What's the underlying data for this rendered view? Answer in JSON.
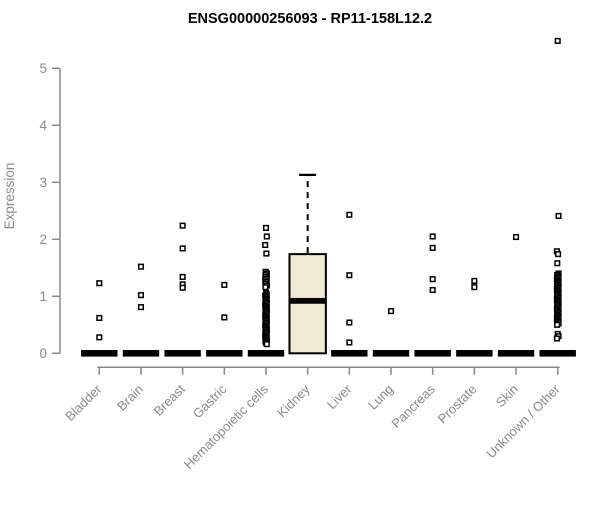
{
  "window": {
    "background": "#ffffff"
  },
  "colors": {
    "title": "#000000",
    "axis": "#888888",
    "tick_label": "#8a8a8a",
    "point_stroke": "#000000",
    "point_fill": "#ffffff",
    "box_fill": "#f0ead2",
    "box_stroke": "#000000",
    "median": "#000000"
  },
  "chart_data": {
    "type": "boxplot",
    "title": "ENSG00000256093 - RP11-158L12.2",
    "xlabel": "",
    "ylabel": "Expression",
    "ylim": [
      0,
      5.6
    ],
    "yticks": [
      0,
      1,
      2,
      3,
      4,
      5
    ],
    "grid": false,
    "legend": "none",
    "categories": [
      "Bladder",
      "Brain",
      "Breast",
      "Gastric",
      "Hematopoietic cells",
      "Kidney",
      "Liver",
      "Lung",
      "Pancreas",
      "Prostate",
      "Skin",
      "Unknown / Other"
    ],
    "boxes": [
      {
        "category": "Bladder",
        "q1": 0,
        "median": 0,
        "q3": 0,
        "whisker_low": 0,
        "whisker_high": 0,
        "outliers": [
          1.23,
          0.62,
          0.28
        ]
      },
      {
        "category": "Brain",
        "q1": 0,
        "median": 0,
        "q3": 0,
        "whisker_low": 0,
        "whisker_high": 0,
        "outliers": [
          1.52,
          1.02,
          0.81
        ]
      },
      {
        "category": "Breast",
        "q1": 0,
        "median": 0,
        "q3": 0,
        "whisker_low": 0,
        "whisker_high": 0,
        "outliers": [
          2.24,
          1.84,
          1.34,
          1.21,
          1.15
        ]
      },
      {
        "category": "Gastric",
        "q1": 0,
        "median": 0,
        "q3": 0,
        "whisker_low": 0,
        "whisker_high": 0,
        "outliers": [
          1.2,
          0.63
        ]
      },
      {
        "category": "Hematopoietic cells",
        "q1": 0,
        "median": 0,
        "q3": 0,
        "whisker_low": 0,
        "whisker_high": 0,
        "outliers": [
          2.2,
          2.05,
          1.9,
          1.75,
          1.43,
          1.4,
          1.37,
          1.34,
          1.31,
          1.28,
          1.25,
          1.22,
          1.19,
          1.16,
          1.06,
          1.035,
          1.01,
          0.985,
          0.96,
          0.935,
          0.91,
          0.885,
          0.86,
          0.835,
          0.81,
          0.785,
          0.76,
          0.735,
          0.71,
          0.685,
          0.66,
          0.635,
          0.61,
          0.585,
          0.56,
          0.535,
          0.51,
          0.485,
          0.46,
          0.435,
          0.41,
          0.385,
          0.36,
          0.335,
          0.31,
          0.285,
          0.26,
          0.235,
          0.21,
          0.185,
          0.16
        ]
      },
      {
        "category": "Kidney",
        "q1": 0,
        "median": 0.92,
        "q3": 1.74,
        "whisker_low": 0,
        "whisker_high": 3.13,
        "outliers": []
      },
      {
        "category": "Liver",
        "q1": 0,
        "median": 0,
        "q3": 0,
        "whisker_low": 0,
        "whisker_high": 0,
        "outliers": [
          2.43,
          1.37,
          0.54,
          0.19
        ]
      },
      {
        "category": "Lung",
        "q1": 0,
        "median": 0,
        "q3": 0,
        "whisker_low": 0,
        "whisker_high": 0,
        "outliers": [
          0.74
        ]
      },
      {
        "category": "Pancreas",
        "q1": 0,
        "median": 0,
        "q3": 0,
        "whisker_low": 0,
        "whisker_high": 0,
        "outliers": [
          2.05,
          1.85,
          1.3,
          1.11
        ]
      },
      {
        "category": "Prostate",
        "q1": 0,
        "median": 0,
        "q3": 0,
        "whisker_low": 0,
        "whisker_high": 0,
        "outliers": [
          1.27,
          1.16
        ]
      },
      {
        "category": "Skin",
        "q1": 0,
        "median": 0,
        "q3": 0,
        "whisker_low": 0,
        "whisker_high": 0,
        "outliers": [
          2.04
        ]
      },
      {
        "category": "Unknown / Other",
        "q1": 0,
        "median": 0,
        "q3": 0,
        "whisker_low": 0,
        "whisker_high": 0,
        "outliers": [
          5.48,
          2.41,
          1.79,
          1.74,
          1.58,
          1.4,
          1.375,
          1.35,
          1.325,
          1.3,
          1.275,
          1.25,
          1.225,
          1.2,
          1.175,
          1.15,
          1.125,
          1.1,
          1.075,
          1.05,
          1.025,
          1.0,
          0.975,
          0.95,
          0.925,
          0.9,
          0.875,
          0.85,
          0.825,
          0.8,
          0.775,
          0.75,
          0.725,
          0.7,
          0.675,
          0.65,
          0.625,
          0.6,
          0.575,
          0.55,
          0.525,
          0.5,
          0.34,
          0.3,
          0.26
        ]
      }
    ]
  }
}
